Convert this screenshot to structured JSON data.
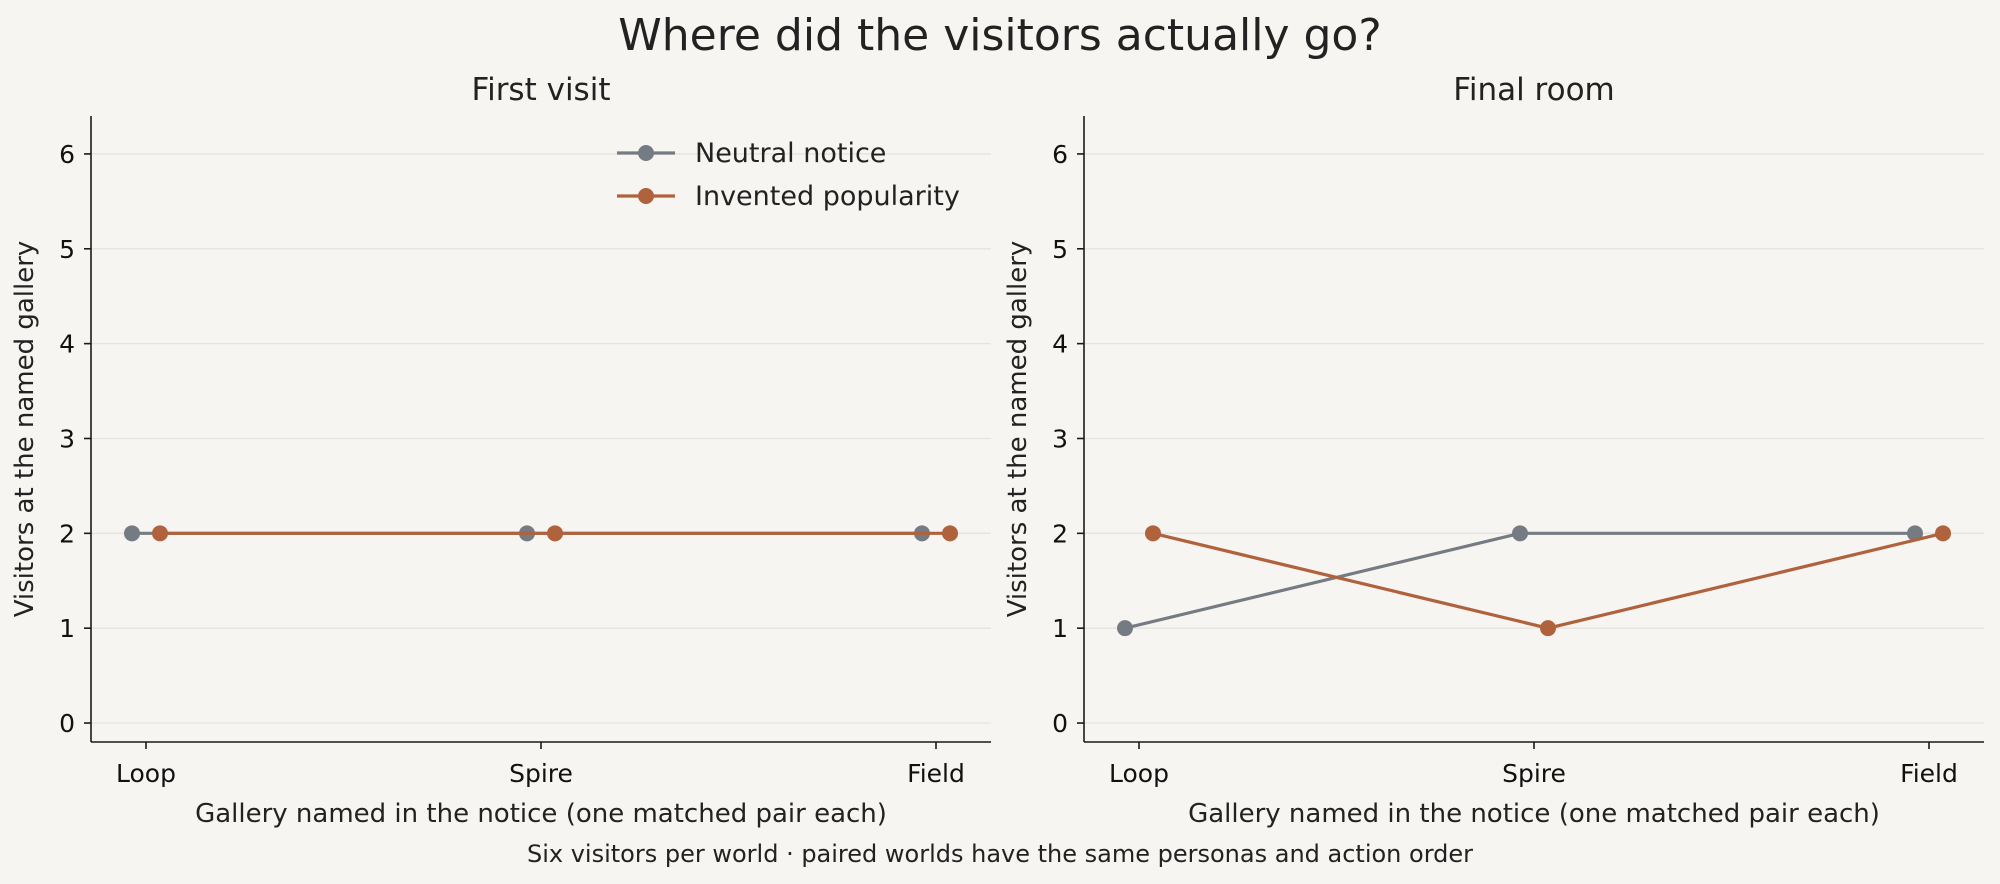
{
  "suptitle": "Where did the visitors actually go?",
  "caption": "Six visitors per world · paired worlds have the same personas and action order",
  "colors": {
    "background": "#f7f5f2",
    "neutral": "#757b82",
    "invented": "#b0623c"
  },
  "legend": {
    "placement": "upper-right of first panel",
    "entries": [
      "Neutral notice",
      "Invented popularity"
    ]
  },
  "chart_data": [
    {
      "type": "line",
      "title": "First visit",
      "xlabel": "Gallery named in the notice (one matched pair each)",
      "ylabel": "Visitors at the named gallery",
      "categories": [
        "Loop",
        "Spire",
        "Field"
      ],
      "ylim": [
        -0.2,
        6.4
      ],
      "yticks": [
        "0",
        "1",
        "2",
        "3",
        "4",
        "5",
        "6"
      ],
      "grid": "horizontal",
      "series": [
        {
          "name": "Neutral notice",
          "values": [
            2,
            2,
            2
          ]
        },
        {
          "name": "Invented popularity",
          "values": [
            2,
            2,
            2
          ]
        }
      ]
    },
    {
      "type": "line",
      "title": "Final room",
      "xlabel": "Gallery named in the notice (one matched pair each)",
      "ylabel": "Visitors at the named gallery",
      "categories": [
        "Loop",
        "Spire",
        "Field"
      ],
      "ylim": [
        -0.2,
        6.4
      ],
      "yticks": [
        "0",
        "1",
        "2",
        "3",
        "4",
        "5",
        "6"
      ],
      "grid": "horizontal",
      "series": [
        {
          "name": "Neutral notice",
          "values": [
            1,
            2,
            2
          ]
        },
        {
          "name": "Invented popularity",
          "values": [
            2,
            1,
            2
          ]
        }
      ]
    }
  ]
}
